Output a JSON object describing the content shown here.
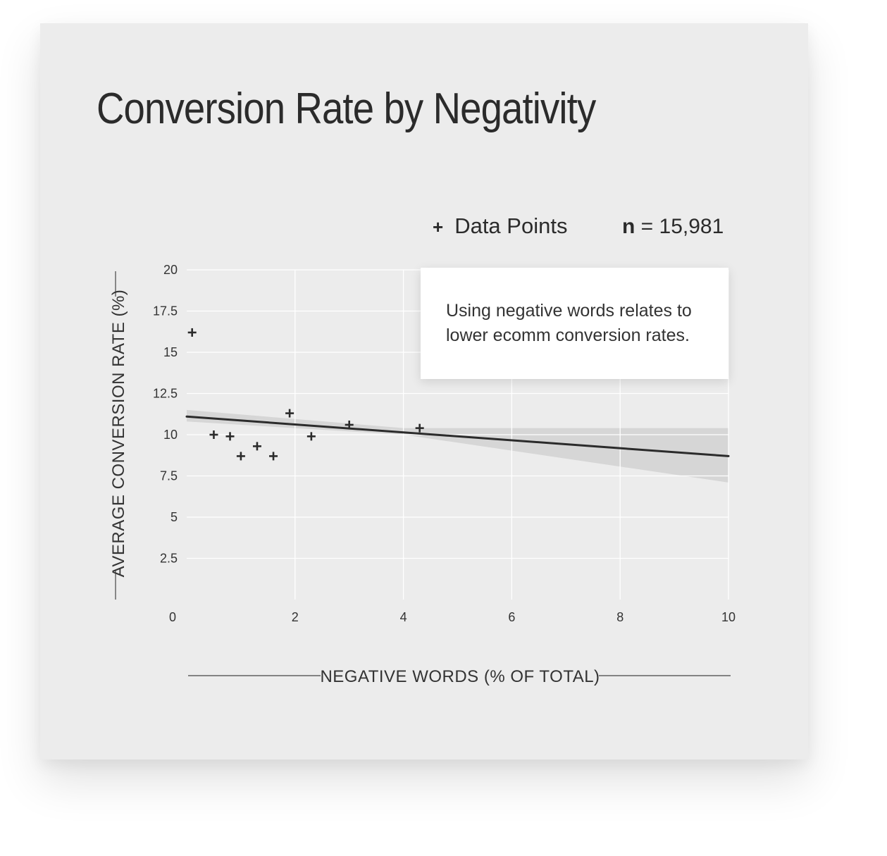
{
  "chart_data": {
    "type": "scatter",
    "title": "Conversion Rate by Negativity",
    "xlabel": "NEGATIVE WORDS (% OF TOTAL)",
    "ylabel": "AVERAGE CONVERSION RATE (%)",
    "xlim": [
      0,
      10
    ],
    "ylim": [
      0,
      20
    ],
    "x_ticks": [
      "0",
      "2",
      "4",
      "6",
      "8",
      "10"
    ],
    "y_ticks": [
      "2.5",
      "5",
      "7.5",
      "10",
      "12.5",
      "15",
      "17.5",
      "20"
    ],
    "x_tick_values": [
      0,
      2,
      4,
      6,
      8,
      10
    ],
    "y_tick_values": [
      2.5,
      5,
      7.5,
      10,
      12.5,
      15,
      17.5,
      20
    ],
    "grid": true,
    "legend": {
      "position": "top-right",
      "marker": "+",
      "label": "Data Points"
    },
    "n_label": "n",
    "n_value": "= 15,981",
    "annotation": "Using negative words relates to lower ecomm conversion rates.",
    "series": [
      {
        "name": "Data Points",
        "points": [
          {
            "x": 0.1,
            "y": 16.2
          },
          {
            "x": 0.5,
            "y": 10.0
          },
          {
            "x": 0.8,
            "y": 9.9
          },
          {
            "x": 1.0,
            "y": 8.7
          },
          {
            "x": 1.3,
            "y": 9.3
          },
          {
            "x": 1.6,
            "y": 8.7
          },
          {
            "x": 1.9,
            "y": 11.3
          },
          {
            "x": 2.3,
            "y": 9.9
          },
          {
            "x": 3.0,
            "y": 10.6
          },
          {
            "x": 4.3,
            "y": 10.4
          }
        ]
      }
    ],
    "trend_line": {
      "x": [
        0,
        10
      ],
      "y": [
        11.1,
        8.7
      ]
    },
    "confidence_band": {
      "x": [
        0,
        4,
        10
      ],
      "lower": [
        10.8,
        10.0,
        7.1
      ],
      "upper": [
        11.5,
        10.4,
        10.4
      ]
    },
    "colors": {
      "marker": "#2b2b2b",
      "trend": "#2b2b2b",
      "band": "#d6d6d6",
      "grid": "#ffffff",
      "background": "#ececec"
    }
  }
}
